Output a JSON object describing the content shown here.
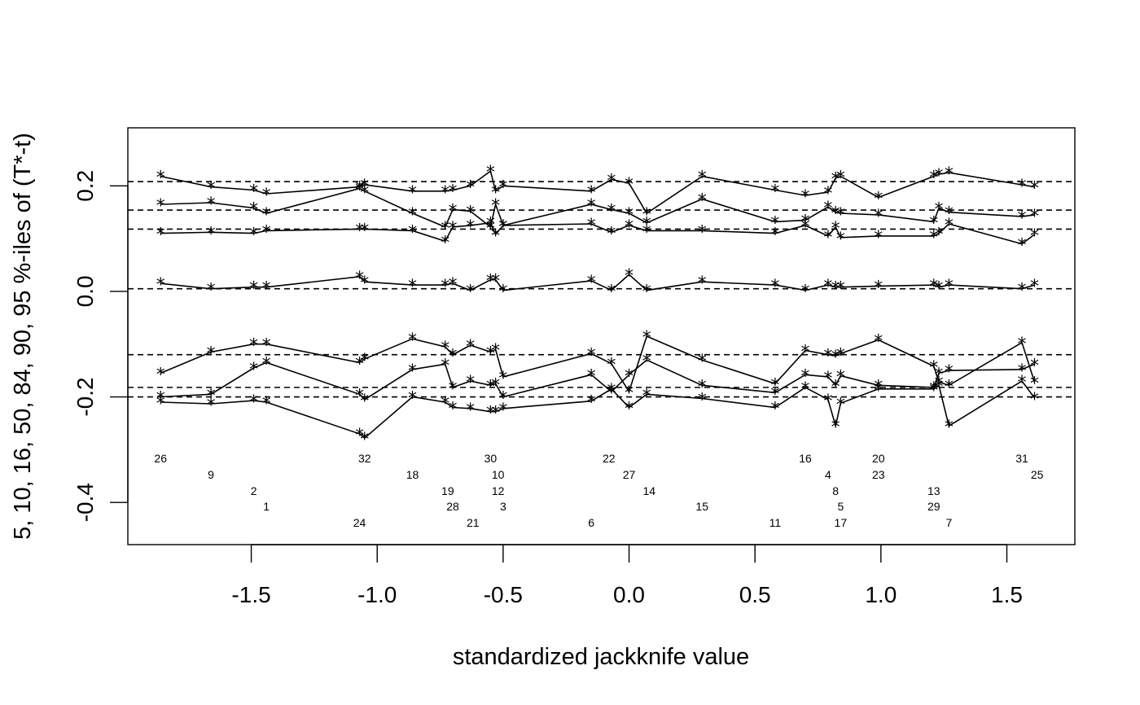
{
  "chart_data": {
    "type": "line",
    "title": "",
    "xlabel": "standardized jackknife value",
    "ylabel": "5, 10, 16, 50, 84, 90, 95 %-iles of (T*-t)",
    "xlim": [
      -1.99,
      1.77
    ],
    "ylim": [
      -0.48,
      0.31
    ],
    "xticks": [
      -1.5,
      -1.0,
      -0.5,
      0.0,
      0.5,
      1.0,
      1.5
    ],
    "xtick_labels": [
      "-1.5",
      "-1.0",
      "-0.5",
      "0.0",
      "0.5",
      "1.0",
      "1.5"
    ],
    "yticks": [
      -0.4,
      -0.2,
      0.0,
      0.2
    ],
    "ytick_labels": [
      "-0.4",
      "-0.2",
      "0.0",
      "0.2"
    ],
    "grid": false,
    "marker": "*",
    "percentiles": [
      5,
      10,
      16,
      50,
      84,
      90,
      95
    ],
    "reference_levels": [
      -0.2,
      -0.182,
      -0.12,
      0.005,
      0.118,
      0.154,
      0.208
    ],
    "x": [
      -1.86,
      -1.66,
      -1.49,
      -1.44,
      -1.07,
      -1.05,
      -0.86,
      -0.73,
      -0.7,
      -0.63,
      -0.55,
      -0.53,
      -0.5,
      -0.15,
      -0.07,
      0.0,
      0.07,
      0.29,
      0.58,
      0.7,
      0.79,
      0.82,
      0.84,
      0.99,
      1.21,
      1.23,
      1.27,
      1.56,
      1.61
    ],
    "series": [
      {
        "name": "5%",
        "values": [
          -0.21,
          -0.213,
          -0.207,
          -0.21,
          -0.27,
          -0.278,
          -0.2,
          -0.21,
          -0.22,
          -0.222,
          -0.228,
          -0.228,
          -0.222,
          -0.208,
          -0.185,
          -0.22,
          -0.195,
          -0.203,
          -0.22,
          -0.182,
          -0.205,
          -0.255,
          -0.212,
          -0.185,
          -0.185,
          -0.178,
          -0.255,
          -0.17,
          -0.202
        ]
      },
      {
        "name": "10%",
        "values": [
          -0.2,
          -0.195,
          -0.145,
          -0.135,
          -0.195,
          -0.205,
          -0.148,
          -0.138,
          -0.182,
          -0.17,
          -0.178,
          -0.175,
          -0.2,
          -0.158,
          -0.19,
          -0.158,
          -0.13,
          -0.178,
          -0.192,
          -0.158,
          -0.162,
          -0.178,
          -0.16,
          -0.178,
          -0.182,
          -0.155,
          -0.15,
          -0.148,
          -0.138
        ]
      },
      {
        "name": "16%",
        "values": [
          -0.155,
          -0.115,
          -0.1,
          -0.1,
          -0.135,
          -0.128,
          -0.09,
          -0.105,
          -0.12,
          -0.102,
          -0.115,
          -0.11,
          -0.162,
          -0.118,
          -0.137,
          -0.19,
          -0.085,
          -0.13,
          -0.175,
          -0.112,
          -0.12,
          -0.122,
          -0.118,
          -0.092,
          -0.142,
          -0.172,
          -0.178,
          -0.097,
          -0.172
        ]
      },
      {
        "name": "50%",
        "values": [
          0.015,
          0.005,
          0.008,
          0.008,
          0.028,
          0.018,
          0.012,
          0.012,
          0.015,
          0.002,
          0.022,
          0.022,
          0.002,
          0.02,
          0.002,
          0.032,
          0.002,
          0.018,
          0.012,
          0.002,
          0.012,
          0.008,
          0.008,
          0.01,
          0.012,
          0.008,
          0.012,
          0.005,
          0.012
        ]
      },
      {
        "name": "84%",
        "values": [
          0.11,
          0.112,
          0.11,
          0.115,
          0.118,
          0.118,
          0.115,
          0.095,
          0.122,
          0.125,
          0.13,
          0.108,
          0.125,
          0.128,
          0.112,
          0.125,
          0.115,
          0.115,
          0.11,
          0.125,
          0.105,
          0.122,
          0.102,
          0.105,
          0.105,
          0.11,
          0.128,
          0.09,
          0.108
        ]
      },
      {
        "name": "90%",
        "values": [
          0.165,
          0.168,
          0.158,
          0.148,
          0.195,
          0.19,
          0.148,
          0.122,
          0.155,
          0.152,
          0.122,
          0.165,
          0.125,
          0.165,
          0.155,
          0.148,
          0.13,
          0.175,
          0.132,
          0.135,
          0.16,
          0.15,
          0.148,
          0.145,
          0.132,
          0.158,
          0.15,
          0.142,
          0.145
        ]
      },
      {
        "name": "95%",
        "values": [
          0.218,
          0.198,
          0.192,
          0.185,
          0.198,
          0.202,
          0.19,
          0.19,
          0.192,
          0.2,
          0.228,
          0.19,
          0.2,
          0.19,
          0.212,
          0.205,
          0.148,
          0.218,
          0.192,
          0.182,
          0.188,
          0.215,
          0.218,
          0.178,
          0.218,
          0.222,
          0.225,
          0.202,
          0.198
        ]
      }
    ],
    "observation_labels": [
      {
        "text": "26",
        "x": -1.86,
        "row": 0
      },
      {
        "text": "9",
        "x": -1.66,
        "row": 1
      },
      {
        "text": "2",
        "x": -1.49,
        "row": 2
      },
      {
        "text": "1",
        "x": -1.44,
        "row": 3
      },
      {
        "text": "32",
        "x": -1.05,
        "row": 0
      },
      {
        "text": "24",
        "x": -1.07,
        "row": 4
      },
      {
        "text": "18",
        "x": -0.86,
        "row": 1
      },
      {
        "text": "19",
        "x": -0.72,
        "row": 2
      },
      {
        "text": "28",
        "x": -0.7,
        "row": 3
      },
      {
        "text": "21",
        "x": -0.62,
        "row": 4
      },
      {
        "text": "30",
        "x": -0.55,
        "row": 0
      },
      {
        "text": "10",
        "x": -0.52,
        "row": 1
      },
      {
        "text": "12",
        "x": -0.52,
        "row": 2
      },
      {
        "text": "3",
        "x": -0.5,
        "row": 3
      },
      {
        "text": "22",
        "x": -0.08,
        "row": 0
      },
      {
        "text": "27",
        "x": 0.0,
        "row": 1
      },
      {
        "text": "6",
        "x": -0.15,
        "row": 4
      },
      {
        "text": "14",
        "x": 0.08,
        "row": 2
      },
      {
        "text": "15",
        "x": 0.29,
        "row": 3
      },
      {
        "text": "11",
        "x": 0.58,
        "row": 4
      },
      {
        "text": "16",
        "x": 0.7,
        "row": 0
      },
      {
        "text": "4",
        "x": 0.79,
        "row": 1
      },
      {
        "text": "8",
        "x": 0.82,
        "row": 2
      },
      {
        "text": "5",
        "x": 0.84,
        "row": 3
      },
      {
        "text": "17",
        "x": 0.84,
        "row": 4
      },
      {
        "text": "20",
        "x": 0.99,
        "row": 0
      },
      {
        "text": "23",
        "x": 0.99,
        "row": 1
      },
      {
        "text": "13",
        "x": 1.21,
        "row": 2
      },
      {
        "text": "29",
        "x": 1.21,
        "row": 3
      },
      {
        "text": "7",
        "x": 1.27,
        "row": 4
      },
      {
        "text": "31",
        "x": 1.56,
        "row": 0
      },
      {
        "text": "25",
        "x": 1.62,
        "row": 1
      }
    ]
  }
}
